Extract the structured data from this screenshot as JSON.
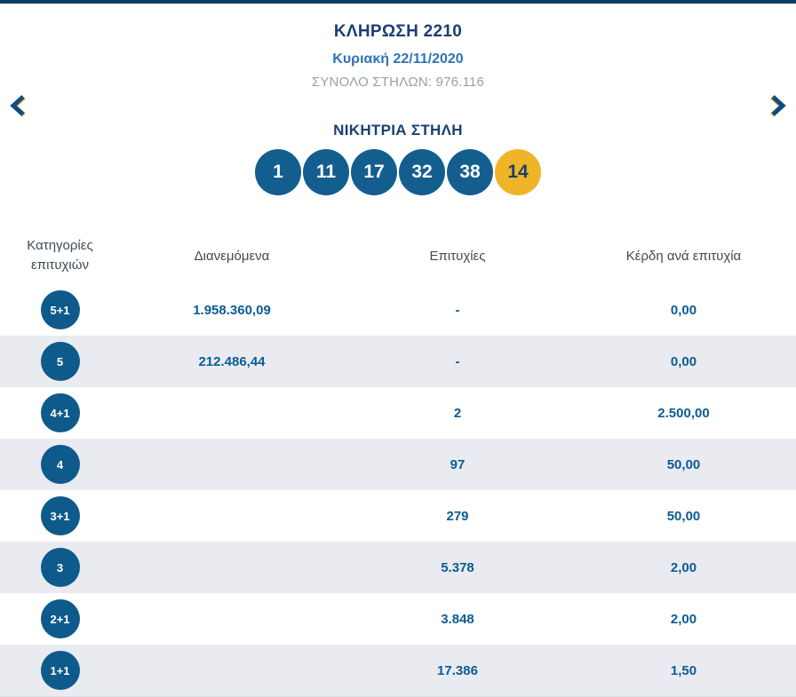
{
  "header": {
    "draw_title": "ΚΛΗΡΩΣΗ 2210",
    "draw_date": "Κυριακή 22/11/2020",
    "total_columns": "ΣΥΝΟΛΟ ΣΤΗΛΩΝ: 976.116"
  },
  "nav": {
    "prev_icon": "chevron-left",
    "next_icon": "chevron-right"
  },
  "winning_column": {
    "title": "ΝΙΚΗΤΡΙΑ ΣΤΗΛΗ",
    "numbers": [
      "1",
      "11",
      "17",
      "32",
      "38"
    ],
    "joker": "14"
  },
  "table": {
    "headers": [
      "Κατηγορίες επιτυχιών",
      "Διανεμόμενα",
      "Επιτυχίες",
      "Κέρδη ανά επιτυχία"
    ],
    "rows": [
      {
        "category": "5+1",
        "distributed": "1.958.360,09",
        "winners": "-",
        "prize": "0,00"
      },
      {
        "category": "5",
        "distributed": "212.486,44",
        "winners": "-",
        "prize": "0,00"
      },
      {
        "category": "4+1",
        "distributed": "",
        "winners": "2",
        "prize": "2.500,00"
      },
      {
        "category": "4",
        "distributed": "",
        "winners": "97",
        "prize": "50,00"
      },
      {
        "category": "3+1",
        "distributed": "",
        "winners": "279",
        "prize": "50,00"
      },
      {
        "category": "3",
        "distributed": "",
        "winners": "5.378",
        "prize": "2,00"
      },
      {
        "category": "2+1",
        "distributed": "",
        "winners": "3.848",
        "prize": "2,00"
      },
      {
        "category": "1+1",
        "distributed": "",
        "winners": "17.386",
        "prize": "1,50"
      }
    ]
  },
  "colors": {
    "top_bar": "#0c3c64",
    "title_navy": "#1b3f72",
    "date_blue": "#2e75b5",
    "subtitle_gray": "#999fa7",
    "ball_blue": "#135e8e",
    "joker_yellow": "#f0b429",
    "badge_blue": "#0e5a8a",
    "value_blue": "#0b5c93",
    "alt_row_bg": "#e9ebf1"
  }
}
